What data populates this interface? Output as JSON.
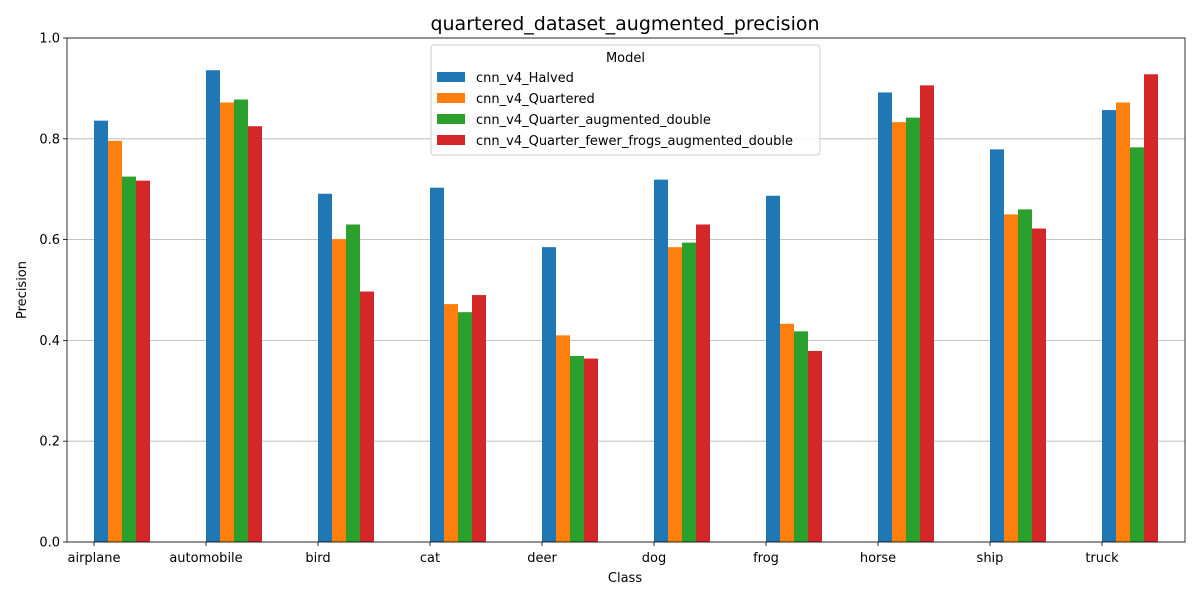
{
  "chart_data": {
    "type": "bar",
    "title": "quartered_dataset_augmented_precision",
    "xlabel": "Class",
    "ylabel": "Precision",
    "ylim": [
      0,
      1.0
    ],
    "yticks": [
      "0.0",
      "0.2",
      "0.4",
      "0.6",
      "0.8",
      "1.0"
    ],
    "grid": "y",
    "legend_title": "Model",
    "legend_position": "top-center",
    "categories": [
      "airplane",
      "automobile",
      "bird",
      "cat",
      "deer",
      "dog",
      "frog",
      "horse",
      "ship",
      "truck"
    ],
    "series": [
      {
        "name": "cnn_v4_Halved",
        "color": "#1f77b4",
        "values": [
          0.836,
          0.936,
          0.691,
          0.703,
          0.585,
          0.719,
          0.687,
          0.892,
          0.779,
          0.857
        ]
      },
      {
        "name": "cnn_v4_Quartered",
        "color": "#ff7f0e",
        "values": [
          0.796,
          0.872,
          0.601,
          0.472,
          0.41,
          0.585,
          0.433,
          0.833,
          0.65,
          0.872
        ]
      },
      {
        "name": "cnn_v4_Quarter_augmented_double",
        "color": "#2ca02c",
        "values": [
          0.725,
          0.878,
          0.63,
          0.456,
          0.369,
          0.594,
          0.418,
          0.842,
          0.66,
          0.783
        ]
      },
      {
        "name": "cnn_v4_Quarter_fewer_frogs_augmented_double",
        "color": "#d62728",
        "values": [
          0.717,
          0.825,
          0.497,
          0.49,
          0.364,
          0.63,
          0.379,
          0.906,
          0.622,
          0.928
        ]
      }
    ]
  }
}
